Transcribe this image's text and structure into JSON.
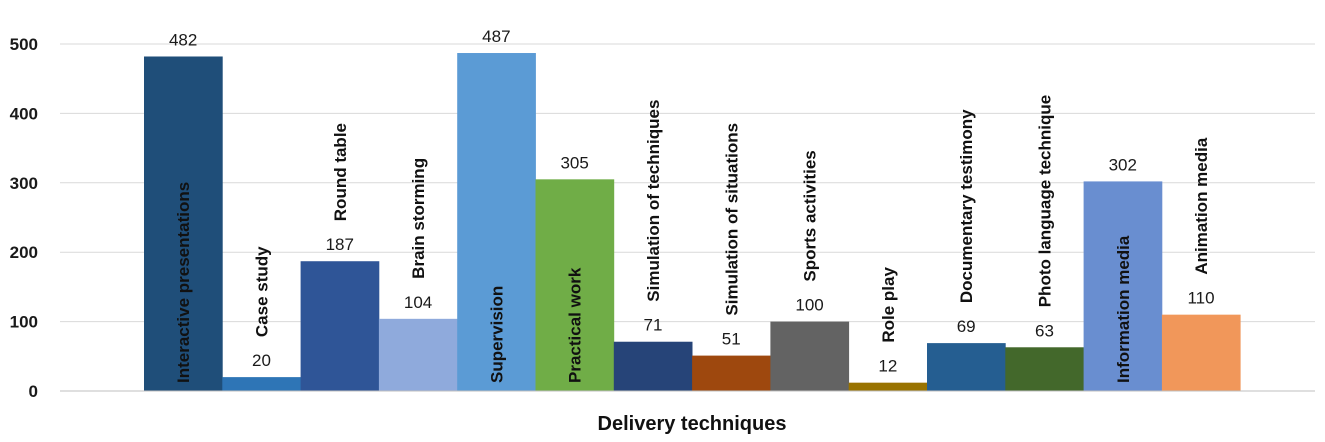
{
  "chart_data": {
    "type": "bar",
    "title": "",
    "xlabel": "Delivery techniques",
    "ylabel": "",
    "ylim": [
      0,
      500
    ],
    "yticks": [
      0,
      100,
      200,
      300,
      400,
      500
    ],
    "grid": true,
    "legend": "none",
    "categories": [
      "Interactive presentations",
      "Case study",
      "Round table",
      "Brain storming",
      "Supervision",
      "Practical work",
      "Simulation of techniques",
      "Simulation of situations",
      "Sports activities",
      "Role play",
      "Documentary testimony",
      "Photo language technique",
      "Information media",
      "Animation media"
    ],
    "values": [
      482,
      20,
      187,
      104,
      487,
      305,
      71,
      51,
      100,
      12,
      69,
      63,
      302,
      110
    ],
    "colors": [
      "#1f4e79",
      "#2e75b6",
      "#2f5597",
      "#8faadc",
      "#5b9bd5",
      "#70ad47",
      "#264478",
      "#9e480e",
      "#636363",
      "#997300",
      "#255e91",
      "#43682b",
      "#698ed0",
      "#f1975a"
    ],
    "category_label_inside_bar": [
      true,
      false,
      false,
      false,
      true,
      true,
      false,
      false,
      false,
      false,
      false,
      false,
      true,
      false
    ]
  }
}
